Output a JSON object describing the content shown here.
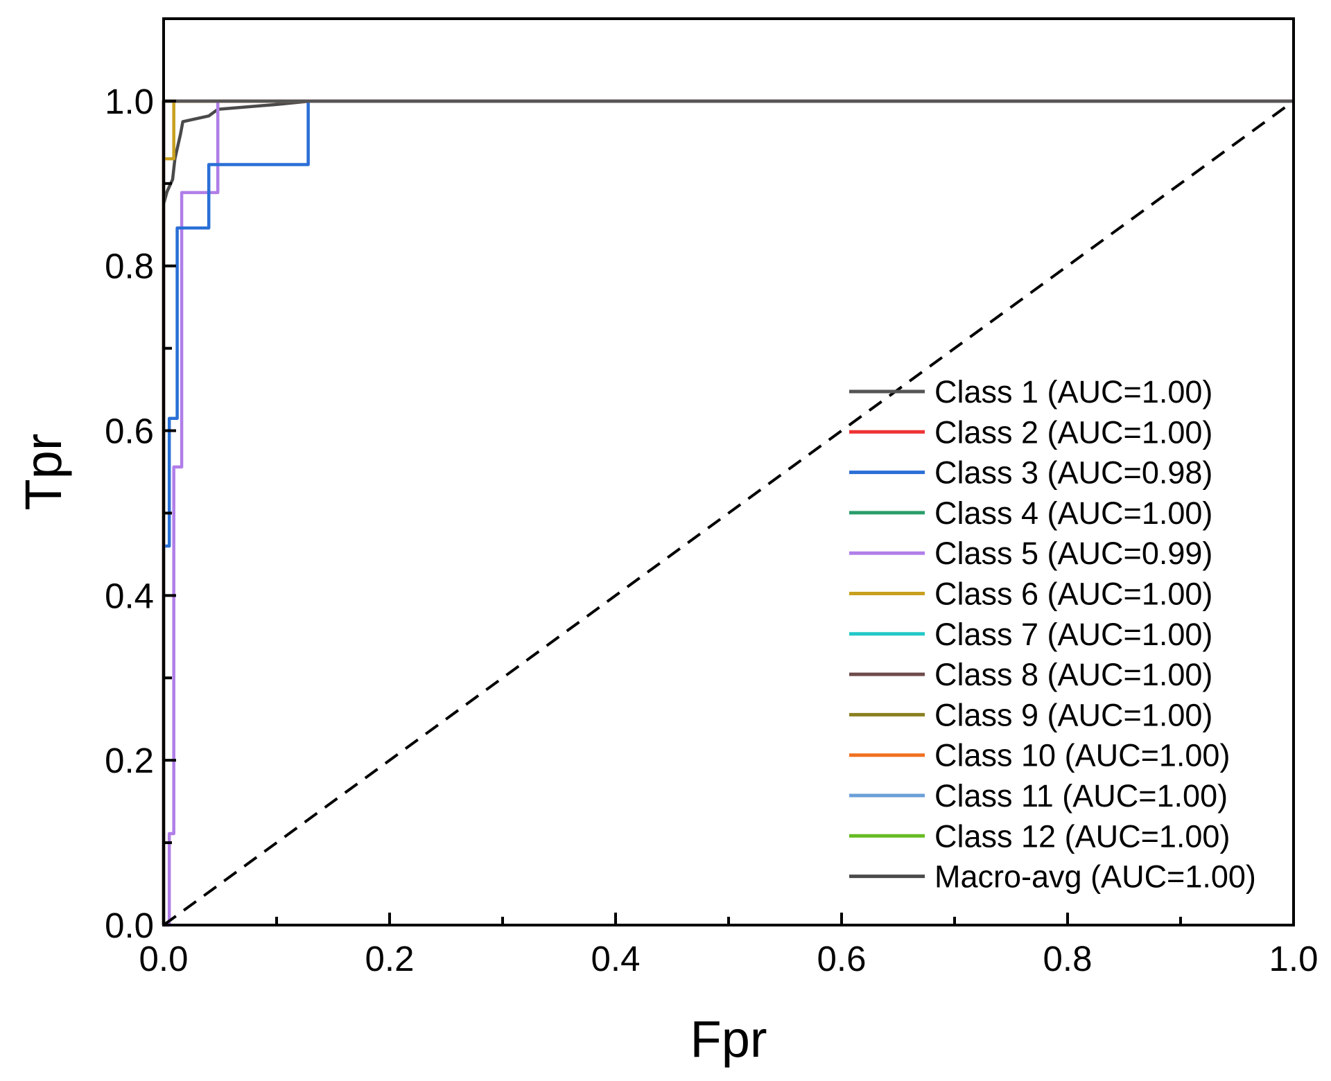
{
  "chart_data": {
    "type": "line",
    "title": "",
    "xlabel": "Fpr",
    "ylabel": "Tpr",
    "xlim": [
      0.0,
      1.0
    ],
    "ylim": [
      0.0,
      1.1
    ],
    "x_ticks": [
      0.0,
      0.2,
      0.4,
      0.6,
      0.8,
      1.0
    ],
    "y_ticks": [
      0.0,
      0.2,
      0.4,
      0.6,
      0.8,
      1.0
    ],
    "x_tick_labels": [
      "0.0",
      "0.2",
      "0.4",
      "0.6",
      "0.8",
      "1.0"
    ],
    "y_tick_labels": [
      "0.0",
      "0.2",
      "0.4",
      "0.6",
      "0.8",
      "1.0"
    ],
    "grid": false,
    "legend_position": "bottom-right",
    "reference_line": {
      "style": "dashed",
      "color": "#000000",
      "points": [
        [
          0,
          0
        ],
        [
          1,
          1
        ]
      ]
    },
    "series": [
      {
        "name": "Class 1 (AUC=1.00)",
        "color": "#555555",
        "points": [
          [
            0,
            0
          ],
          [
            0,
            1
          ],
          [
            1,
            1
          ]
        ]
      },
      {
        "name": "Class 2 (AUC=1.00)",
        "color": "#ee3333",
        "points": [
          [
            0,
            0
          ],
          [
            0,
            1
          ],
          [
            1,
            1
          ]
        ]
      },
      {
        "name": "Class 3 (AUC=0.98)",
        "color": "#2a6fd6",
        "points": [
          [
            0,
            0
          ],
          [
            0,
            0.46
          ],
          [
            0.005,
            0.46
          ],
          [
            0.005,
            0.615
          ],
          [
            0.012,
            0.615
          ],
          [
            0.012,
            0.846
          ],
          [
            0.04,
            0.846
          ],
          [
            0.04,
            0.923
          ],
          [
            0.128,
            0.923
          ],
          [
            0.128,
            1.0
          ],
          [
            1.0,
            1.0
          ]
        ]
      },
      {
        "name": "Class 4 (AUC=1.00)",
        "color": "#2a9d6a",
        "points": [
          [
            0,
            0
          ],
          [
            0,
            1
          ],
          [
            1,
            1
          ]
        ]
      },
      {
        "name": "Class 5 (AUC=0.99)",
        "color": "#b07ee8",
        "points": [
          [
            0,
            0
          ],
          [
            0.005,
            0.0
          ],
          [
            0.005,
            0.111
          ],
          [
            0.009,
            0.111
          ],
          [
            0.009,
            0.556
          ],
          [
            0.016,
            0.556
          ],
          [
            0.016,
            0.889
          ],
          [
            0.048,
            0.889
          ],
          [
            0.048,
            1.0
          ],
          [
            1.0,
            1.0
          ]
        ]
      },
      {
        "name": "Class 6 (AUC=1.00)",
        "color": "#c8a020",
        "points": [
          [
            0,
            0
          ],
          [
            0,
            0.93
          ],
          [
            0.009,
            0.93
          ],
          [
            0.009,
            1.0
          ],
          [
            1.0,
            1.0
          ]
        ]
      },
      {
        "name": "Class 7 (AUC=1.00)",
        "color": "#22c8c8",
        "points": [
          [
            0,
            0
          ],
          [
            0,
            1
          ],
          [
            1,
            1
          ]
        ]
      },
      {
        "name": "Class 8 (AUC=1.00)",
        "color": "#6e4a4a",
        "points": [
          [
            0,
            0
          ],
          [
            0,
            1
          ],
          [
            1,
            1
          ]
        ]
      },
      {
        "name": "Class 9 (AUC=1.00)",
        "color": "#8a8020",
        "points": [
          [
            0,
            0
          ],
          [
            0,
            1
          ],
          [
            1,
            1
          ]
        ]
      },
      {
        "name": "Class 10 (AUC=1.00)",
        "color": "#f07020",
        "points": [
          [
            0,
            0
          ],
          [
            0,
            1
          ],
          [
            1,
            1
          ]
        ]
      },
      {
        "name": "Class 11 (AUC=1.00)",
        "color": "#6a9fd8",
        "points": [
          [
            0,
            0
          ],
          [
            0,
            1
          ],
          [
            1,
            1
          ]
        ]
      },
      {
        "name": "Class 12 (AUC=1.00)",
        "color": "#66bb22",
        "points": [
          [
            0,
            0
          ],
          [
            0,
            1
          ],
          [
            1,
            1
          ]
        ]
      },
      {
        "name": "Macro-avg (AUC=1.00)",
        "color": "#4a4a4a",
        "points": [
          [
            0,
            0.875
          ],
          [
            0.003,
            0.89
          ],
          [
            0.008,
            0.905
          ],
          [
            0.01,
            0.93
          ],
          [
            0.015,
            0.96
          ],
          [
            0.017,
            0.975
          ],
          [
            0.04,
            0.982
          ],
          [
            0.048,
            0.99
          ],
          [
            0.1,
            0.996
          ],
          [
            0.13,
            1.0
          ],
          [
            1.0,
            1.0
          ]
        ]
      }
    ]
  }
}
